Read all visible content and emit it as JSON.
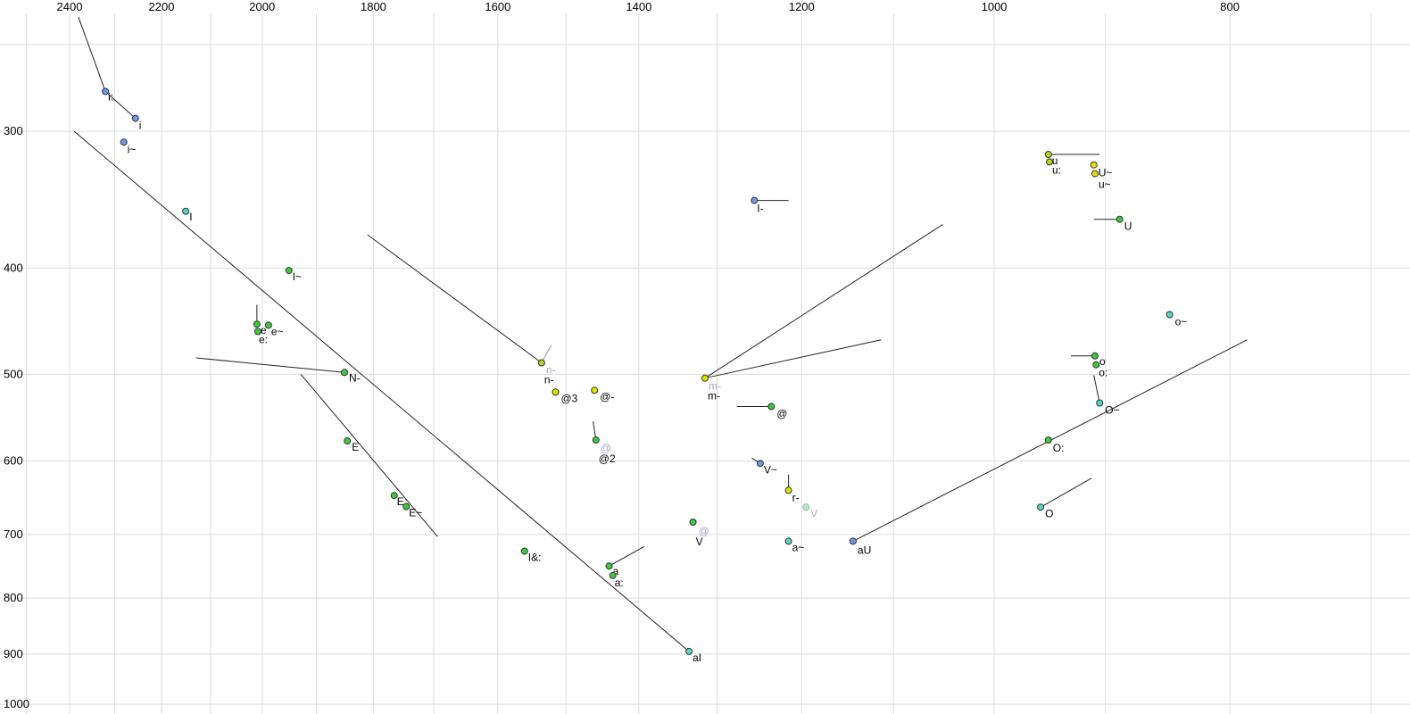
{
  "chart_data": {
    "type": "scatter",
    "description_visible_text_only": "vowel formant scatter plot, F2 across top (reversed, log), F1 down left side (reversed, log)",
    "x_axis": {
      "ticks": [
        2400,
        2200,
        2000,
        1800,
        1600,
        1400,
        1200,
        1000,
        800
      ],
      "scale": "log",
      "reversed": true,
      "grid_step_hz": 100,
      "grid_min": 700,
      "grid_max": 2500
    },
    "y_axis": {
      "ticks": [
        300,
        400,
        500,
        600,
        700,
        800,
        900,
        1000
      ],
      "scale": "log",
      "reversed": true,
      "grid_values": [
        250,
        300,
        400,
        500,
        600,
        700,
        800,
        900,
        1000
      ]
    },
    "colors": {
      "blue": "#6f96e8",
      "cyan": "#55d6cd",
      "green": "#3ec93e",
      "yellow": "#e3e300",
      "yellowgreen": "#bcd41c",
      "faded": "#aef0bc",
      "ghost_text": "#a8a8c0",
      "grid": "#dcdcdc",
      "line": "#222222",
      "ghost_line": "#999999"
    },
    "points": [
      {
        "label": "i:",
        "f2": 2320,
        "f1": 276,
        "c": "blue",
        "l": [
          3,
          10
        ]
      },
      {
        "label": "i",
        "f2": 2255,
        "f1": 292,
        "c": "blue",
        "l": [
          4,
          12
        ]
      },
      {
        "label": "i~",
        "f2": 2280,
        "f1": 307,
        "c": "blue",
        "l": [
          4,
          12
        ]
      },
      {
        "label": "I",
        "f2": 2150,
        "f1": 355,
        "c": "cyan",
        "l": [
          4,
          10
        ]
      },
      {
        "label": "I~",
        "f2": 1950,
        "f1": 402,
        "c": "green",
        "l": [
          4,
          11
        ]
      },
      {
        "label": "e",
        "f2": 2010,
        "f1": 450,
        "c": "green",
        "l": [
          4,
          11
        ]
      },
      {
        "label": "e~",
        "f2": 1988,
        "f1": 451,
        "c": "green",
        "l": [
          3,
          11
        ]
      },
      {
        "label": "e:",
        "f2": 2008,
        "f1": 457,
        "c": "green",
        "l": [
          1,
          13
        ]
      },
      {
        "label": "N-",
        "f2": 1850,
        "f1": 498,
        "c": "green",
        "l": [
          5,
          10
        ]
      },
      {
        "label": "E",
        "f2": 1845,
        "f1": 575,
        "c": "green",
        "l": [
          5,
          11
        ]
      },
      {
        "label": "E",
        "f2": 1765,
        "f1": 645,
        "c": "green",
        "l": [
          3,
          11
        ]
      },
      {
        "label": "E~",
        "f2": 1745,
        "f1": 660,
        "c": "green",
        "l": [
          3,
          11
        ]
      },
      {
        "label": "I&:",
        "f2": 1560,
        "f1": 725,
        "c": "green",
        "l": [
          4,
          11
        ]
      },
      {
        "label": "a",
        "f2": 1440,
        "f1": 748,
        "c": "green",
        "l": [
          4,
          10
        ]
      },
      {
        "label": "a:",
        "f2": 1435,
        "f1": 763,
        "c": "green",
        "l": [
          2,
          12
        ]
      },
      {
        "label": "aI",
        "f2": 1335,
        "f1": 895,
        "c": "cyan",
        "l": [
          4,
          11
        ]
      },
      {
        "label": "n-",
        "ghost": "n-",
        "f2": 1535,
        "f1": 488,
        "c": "yellowgreen",
        "l": [
          3,
          23
        ],
        "g": [
          5,
          12
        ]
      },
      {
        "label": "@3",
        "f2": 1515,
        "f1": 519,
        "c": "yellow",
        "l": [
          6,
          11
        ]
      },
      {
        "label": "@-",
        "f2": 1460,
        "f1": 517,
        "c": "yellow",
        "l": [
          6,
          11
        ]
      },
      {
        "label": "@2",
        "ghost": "@",
        "f2": 1458,
        "f1": 574,
        "c": "green",
        "l": [
          3,
          25
        ],
        "g": [
          5,
          13
        ]
      },
      {
        "label": "V",
        "ghost": "@",
        "f2": 1330,
        "f1": 682,
        "c": "green",
        "l": [
          3,
          26
        ],
        "g": [
          6,
          14
        ]
      },
      {
        "label": "m-",
        "ghost": "m-",
        "f2": 1315,
        "f1": 504,
        "c": "yellow",
        "l": [
          3,
          24
        ],
        "g": [
          4,
          13
        ]
      },
      {
        "label": "I-",
        "f2": 1255,
        "f1": 347,
        "c": "blue",
        "l": [
          3,
          13
        ]
      },
      {
        "label": "@",
        "f2": 1235,
        "f1": 535,
        "c": "green",
        "l": [
          6,
          12
        ]
      },
      {
        "label": "V~",
        "f2": 1248,
        "f1": 603,
        "c": "blue",
        "l": [
          4,
          11
        ]
      },
      {
        "label": "r-",
        "f2": 1215,
        "f1": 638,
        "c": "yellow",
        "l": [
          4,
          12
        ]
      },
      {
        "label": "",
        "ghost": "V",
        "f2": 1195,
        "f1": 661,
        "c": "faded",
        "g": [
          5,
          11
        ]
      },
      {
        "label": "a~",
        "f2": 1215,
        "f1": 710,
        "c": "cyan",
        "l": [
          4,
          11
        ]
      },
      {
        "label": "aU",
        "f2": 1143,
        "f1": 710,
        "c": "blue",
        "l": [
          5,
          14
        ]
      },
      {
        "label": "O:",
        "f2": 950,
        "f1": 574,
        "c": "green",
        "l": [
          5,
          13
        ]
      },
      {
        "label": "O",
        "f2": 957,
        "f1": 661,
        "c": "cyan",
        "l": [
          5,
          11
        ]
      },
      {
        "label": "O~",
        "f2": 905,
        "f1": 531,
        "c": "cyan",
        "l": [
          6,
          12
        ]
      },
      {
        "label": "o",
        "f2": 909,
        "f1": 481,
        "c": "green",
        "l": [
          5,
          10
        ]
      },
      {
        "label": "o:",
        "f2": 908,
        "f1": 490,
        "c": "green",
        "l": [
          3,
          13
        ]
      },
      {
        "label": "o~",
        "f2": 847,
        "f1": 441,
        "c": "cyan",
        "l": [
          6,
          12
        ]
      },
      {
        "label": "U",
        "f2": 888,
        "f1": 361,
        "c": "green",
        "l": [
          5,
          12
        ]
      },
      {
        "label": "u",
        "f2": 950,
        "f1": 315,
        "c": "yellowgreen",
        "l": [
          4,
          11
        ]
      },
      {
        "label": "u:",
        "f2": 949,
        "f1": 320,
        "c": "yellowgreen",
        "l": [
          3,
          13
        ]
      },
      {
        "label": "U~",
        "f2": 910,
        "f1": 322,
        "c": "yellow",
        "l": [
          5,
          13
        ]
      },
      {
        "label": "u~",
        "f2": 909,
        "f1": 328,
        "c": "yellow",
        "l": [
          4,
          16
        ]
      }
    ],
    "lines": [
      {
        "f2a": 2380,
        "f1a": 236,
        "f2b": 2320,
        "f1b": 276
      },
      {
        "f2a": 2320,
        "f1a": 276,
        "f2b": 2255,
        "f1b": 292
      },
      {
        "f2a": 2390,
        "f1a": 300,
        "f2b": 1335,
        "f1b": 895
      },
      {
        "f2a": 2129,
        "f1a": 483,
        "f2b": 1850,
        "f1b": 498
      },
      {
        "f2a": 1928,
        "f1a": 500,
        "f2b": 1694,
        "f1b": 703
      },
      {
        "f2a": 1810,
        "f1a": 373,
        "f2b": 1535,
        "f1b": 488
      },
      {
        "f2a": 1521,
        "f1a": 470,
        "f2b": 1535,
        "f1b": 488,
        "gray": true
      },
      {
        "f2a": 2010,
        "f1a": 432,
        "f2b": 2010,
        "f1b": 453
      },
      {
        "f2a": 1462,
        "f1a": 552,
        "f2b": 1458,
        "f1b": 574
      },
      {
        "f2a": 1440,
        "f1a": 748,
        "f2b": 1393,
        "f1b": 718
      },
      {
        "f2a": 1315,
        "f1a": 504,
        "f2b": 1050,
        "f1b": 365
      },
      {
        "f2a": 1315,
        "f1a": 504,
        "f2b": 1113,
        "f1b": 465
      },
      {
        "f2a": 1255,
        "f1a": 347,
        "f2b": 1215,
        "f1b": 347
      },
      {
        "f2a": 1235,
        "f1a": 535,
        "f2b": 1276,
        "f1b": 535
      },
      {
        "f2a": 1258,
        "f1a": 596,
        "f2b": 1248,
        "f1b": 603
      },
      {
        "f2a": 1215,
        "f1a": 617,
        "f2b": 1215,
        "f1b": 638
      },
      {
        "f2a": 1143,
        "f1a": 710,
        "f2b": 787,
        "f1b": 465
      },
      {
        "f2a": 957,
        "f1a": 661,
        "f2b": 912,
        "f1b": 622
      },
      {
        "f2a": 910,
        "f1a": 501,
        "f2b": 905,
        "f1b": 531
      },
      {
        "f2a": 909,
        "f1a": 481,
        "f2b": 930,
        "f1b": 481
      },
      {
        "f2a": 888,
        "f1a": 361,
        "f2b": 910,
        "f1b": 361
      },
      {
        "f2a": 950,
        "f1a": 315,
        "f2b": 905,
        "f1b": 315
      }
    ]
  }
}
